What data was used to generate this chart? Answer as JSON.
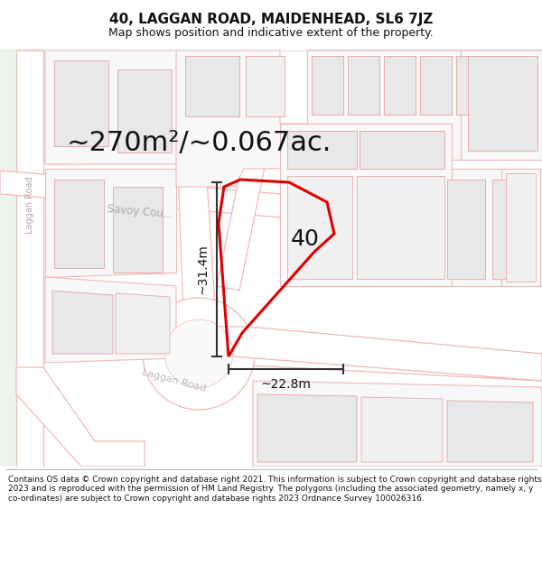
{
  "title": "40, LAGGAN ROAD, MAIDENHEAD, SL6 7JZ",
  "subtitle": "Map shows position and indicative extent of the property.",
  "area_text": "~270m²/~0.067ac.",
  "label_40": "40",
  "dim_vertical": "~31.4m",
  "dim_horizontal": "~22.8m",
  "footer": "Contains OS data © Crown copyright and database right 2021. This information is subject to Crown copyright and database rights 2023 and is reproduced with the permission of HM Land Registry. The polygons (including the associated geometry, namely x, y co-ordinates) are subject to Crown copyright and database rights 2023 Ordnance Survey 100026316.",
  "bg_color": "#ffffff",
  "map_bg": "#ffffff",
  "road_edge": "#f0b8b8",
  "road_fill": "#ffffff",
  "building_edge": "#e8aaaa",
  "building_fill": "#e8e8e8",
  "building_fill_light": "#f0f0f0",
  "property_color": "#dd0000",
  "dim_line_color": "#333333",
  "street_label_color": "#aaaaaa",
  "title_fontsize": 11,
  "subtitle_fontsize": 9,
  "area_fontsize": 22,
  "label_fontsize": 18,
  "dim_fontsize": 10,
  "footer_fontsize": 6.5,
  "savoy_label": "Savoy Cou...",
  "laggan_left_label": "Laggan Road",
  "laggan_bottom_label": "Laggan Road"
}
